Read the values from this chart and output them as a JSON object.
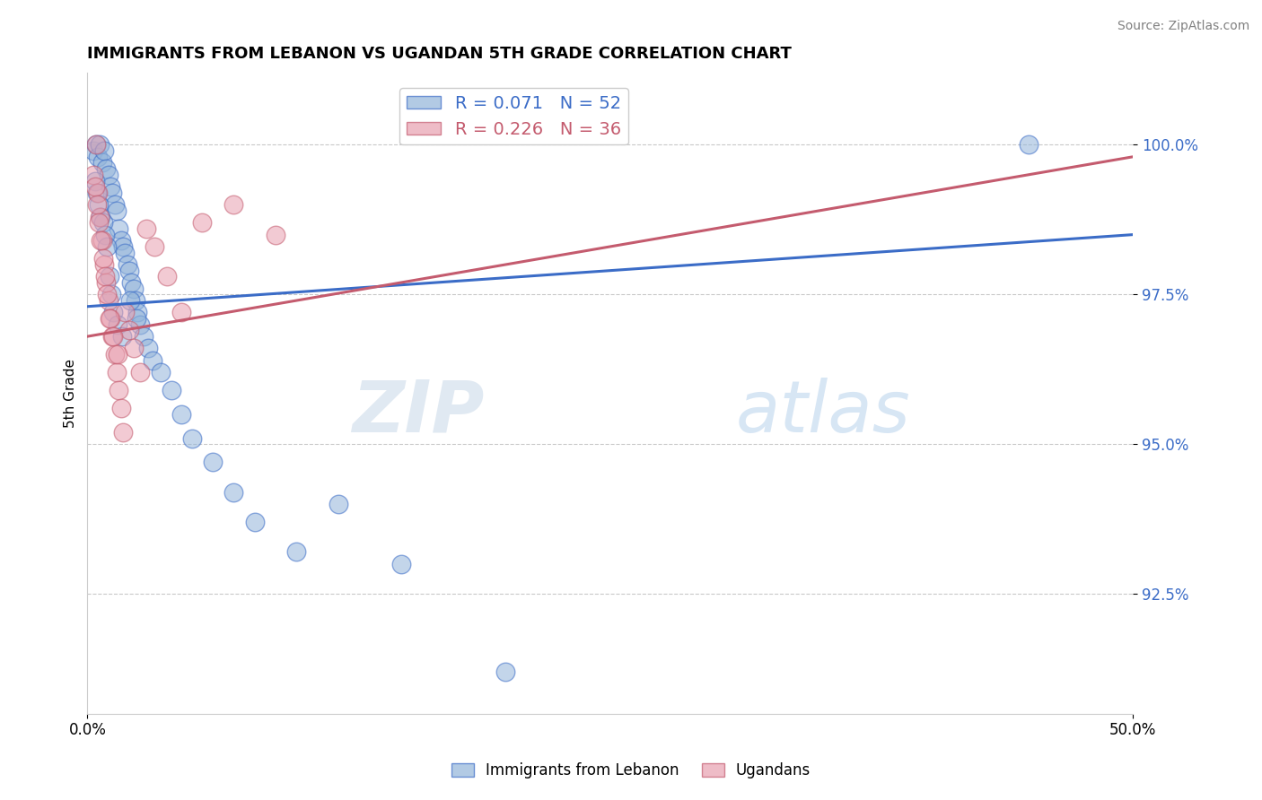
{
  "title": "IMMIGRANTS FROM LEBANON VS UGANDAN 5TH GRADE CORRELATION CHART",
  "source": "Source: ZipAtlas.com",
  "ylabel": "5th Grade",
  "xmin": 0.0,
  "xmax": 50.0,
  "ymin": 90.5,
  "ymax": 101.2,
  "yticks": [
    92.5,
    95.0,
    97.5,
    100.0
  ],
  "xticks": [
    0.0,
    50.0
  ],
  "xtick_labels": [
    "0.0%",
    "50.0%"
  ],
  "blue_label": "Immigrants from Lebanon",
  "pink_label": "Ugandans",
  "blue_R": 0.071,
  "blue_N": 52,
  "pink_R": 0.226,
  "pink_N": 36,
  "blue_color": "#92B4D9",
  "pink_color": "#E8A0B0",
  "blue_line_color": "#3B6CC7",
  "pink_line_color": "#C45B6E",
  "watermark_zip": "ZIP",
  "watermark_atlas": "atlas",
  "blue_x": [
    0.3,
    0.4,
    0.5,
    0.6,
    0.7,
    0.8,
    0.9,
    1.0,
    1.1,
    1.2,
    1.3,
    1.4,
    1.5,
    1.6,
    1.7,
    1.8,
    1.9,
    2.0,
    2.1,
    2.2,
    2.3,
    2.4,
    2.5,
    2.7,
    2.9,
    3.1,
    3.5,
    4.0,
    4.5,
    5.0,
    6.0,
    7.0,
    8.0,
    10.0,
    12.0,
    15.0,
    20.0,
    0.35,
    0.45,
    0.55,
    0.65,
    0.75,
    0.85,
    0.95,
    1.05,
    1.15,
    1.25,
    1.45,
    1.65,
    2.05,
    2.35,
    45.0
  ],
  "blue_y": [
    99.9,
    100.0,
    99.8,
    100.0,
    99.7,
    99.9,
    99.6,
    99.5,
    99.3,
    99.2,
    99.0,
    98.9,
    98.6,
    98.4,
    98.3,
    98.2,
    98.0,
    97.9,
    97.7,
    97.6,
    97.4,
    97.2,
    97.0,
    96.8,
    96.6,
    96.4,
    96.2,
    95.9,
    95.5,
    95.1,
    94.7,
    94.2,
    93.7,
    93.2,
    94.0,
    93.0,
    91.2,
    99.4,
    99.2,
    99.0,
    98.8,
    98.7,
    98.5,
    98.3,
    97.8,
    97.5,
    97.2,
    97.0,
    96.8,
    97.4,
    97.1,
    100.0
  ],
  "pink_x": [
    0.3,
    0.4,
    0.5,
    0.6,
    0.7,
    0.8,
    0.9,
    1.0,
    1.1,
    1.2,
    1.3,
    1.4,
    1.5,
    1.6,
    1.7,
    1.8,
    2.0,
    2.2,
    2.5,
    2.8,
    3.2,
    3.8,
    4.5,
    5.5,
    7.0,
    9.0,
    0.35,
    0.45,
    0.55,
    0.65,
    0.75,
    0.85,
    0.95,
    1.05,
    1.25,
    1.45
  ],
  "pink_y": [
    99.5,
    100.0,
    99.2,
    98.8,
    98.4,
    98.0,
    97.7,
    97.4,
    97.1,
    96.8,
    96.5,
    96.2,
    95.9,
    95.6,
    95.2,
    97.2,
    96.9,
    96.6,
    96.2,
    98.6,
    98.3,
    97.8,
    97.2,
    98.7,
    99.0,
    98.5,
    99.3,
    99.0,
    98.7,
    98.4,
    98.1,
    97.8,
    97.5,
    97.1,
    96.8,
    96.5
  ],
  "blue_trend_x0": 0.0,
  "blue_trend_y0": 97.3,
  "blue_trend_x1": 50.0,
  "blue_trend_y1": 98.5,
  "pink_trend_x0": 0.0,
  "pink_trend_y0": 96.8,
  "pink_trend_x1": 50.0,
  "pink_trend_y1": 99.8
}
